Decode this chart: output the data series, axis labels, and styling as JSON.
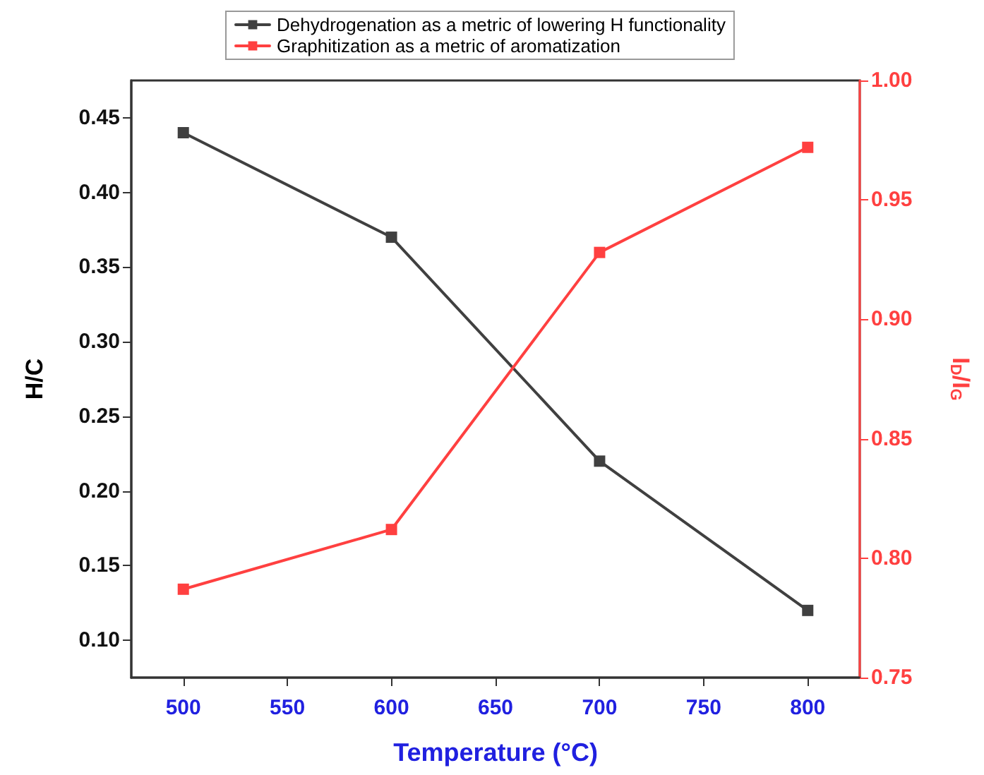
{
  "chart_data": {
    "type": "line",
    "xlabel": "Temperature (°C)",
    "ylabel": "H/C",
    "y2label": "I$_{D}$/I$_{G}$",
    "x": [
      500,
      600,
      700,
      800
    ],
    "xlim": [
      475,
      825
    ],
    "xticks": [
      500,
      550,
      600,
      650,
      700,
      750,
      800
    ],
    "ylim": [
      0.075,
      0.475
    ],
    "yticks": [
      {
        "value": 0.1,
        "label": "0.10"
      },
      0.15,
      {
        "value": 0.2,
        "label": "0.20"
      },
      0.25,
      {
        "value": 0.3,
        "label": "0.30"
      },
      0.35,
      {
        "value": 0.4,
        "label": "0.40"
      },
      0.45
    ],
    "y2lim": [
      0.75,
      1.0
    ],
    "y2ticks": [
      0.75,
      {
        "value": 0.8,
        "label": "0.80"
      },
      0.85,
      {
        "value": 0.9,
        "label": "0.90"
      },
      0.95,
      {
        "value": 1,
        "label": "1.00"
      }
    ],
    "series": [
      {
        "name": "Dehydrogenation as a metric of lowering H functionality",
        "color": "#404040",
        "values": [
          0.44,
          0.37,
          0.22,
          0.12
        ]
      },
      {
        "name": "Graphitization as a metric of aromatization",
        "color": "#ff4040",
        "axis": "y2",
        "values": [
          0.787,
          0.812,
          0.928,
          0.972
        ]
      }
    ],
    "grid": false,
    "legend": "top",
    "marker": "square",
    "line_style": "solid"
  }
}
